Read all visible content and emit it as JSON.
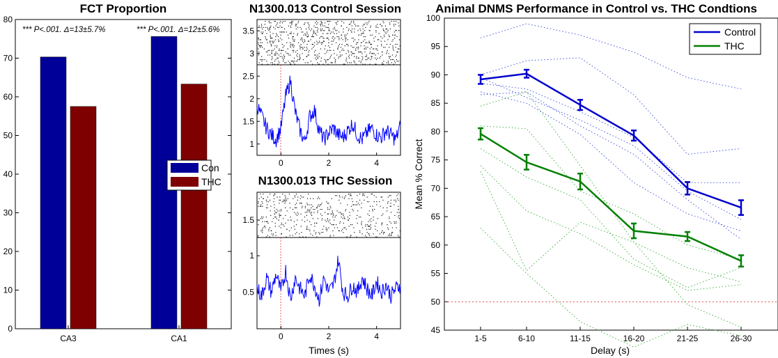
{
  "chart_data": [
    {
      "type": "bar",
      "title": "FCT Proportion",
      "categories": [
        "CA3",
        "CA1"
      ],
      "series": [
        {
          "name": "Con",
          "color": "#000099",
          "values": [
            70.3,
            75.6
          ]
        },
        {
          "name": "THC",
          "color": "#7f0000",
          "values": [
            57.5,
            63.3
          ]
        }
      ],
      "ylim": [
        0,
        80
      ],
      "yticks": [
        "0",
        "10",
        "20",
        "30",
        "40",
        "50",
        "60",
        "70",
        "80"
      ],
      "annotations": [
        "*** P<.001. Δ=13±5.7%",
        "*** P<.001. Δ=12±5.6%"
      ],
      "legend": [
        "Con",
        "THC"
      ],
      "legend_position": "middle-right"
    },
    {
      "type": "line",
      "title": "N1300.013 Control Session",
      "xlim": [
        -1,
        5
      ],
      "xticks": [
        "0",
        "2",
        "4"
      ],
      "raster_ylim": [
        2.75,
        3.75
      ],
      "raster_yticks": [
        "3",
        "3.5"
      ],
      "trace_ylim": [
        0.75,
        2.75
      ],
      "trace_yticks": [
        "1",
        "1.5",
        "2",
        "2.5"
      ],
      "trace_color": "#0000ff",
      "x": [
        -1.0,
        -0.8,
        -0.6,
        -0.4,
        -0.2,
        0.0,
        0.2,
        0.4,
        0.6,
        0.8,
        1.0,
        1.2,
        1.4,
        1.6,
        1.8,
        2.0,
        2.2,
        2.4,
        2.6,
        2.8,
        3.0,
        3.2,
        3.4,
        3.6,
        3.8,
        4.0,
        4.2,
        4.4,
        4.6,
        4.8,
        5.0
      ],
      "values": [
        1.85,
        1.6,
        1.35,
        1.2,
        1.1,
        1.35,
        2.05,
        2.4,
        1.7,
        1.3,
        1.05,
        1.6,
        1.75,
        1.3,
        1.1,
        1.25,
        1.35,
        1.2,
        1.15,
        1.3,
        1.45,
        1.2,
        1.1,
        1.25,
        1.35,
        1.2,
        1.15,
        1.3,
        1.2,
        1.1,
        1.4
      ]
    },
    {
      "type": "line",
      "title": "N1300.013 THC Session",
      "xlim": [
        -1,
        5
      ],
      "xticks": [
        "0",
        "2",
        "4"
      ],
      "xlabel": "Times (s)",
      "raster_ylim": [
        1.25,
        1.9
      ],
      "raster_yticks": [
        "1.5"
      ],
      "trace_ylim": [
        0,
        1.25
      ],
      "trace_yticks": [
        "0.5",
        "1"
      ],
      "trace_color": "#0000ff",
      "x": [
        -1.0,
        -0.8,
        -0.6,
        -0.4,
        -0.2,
        0.0,
        0.2,
        0.4,
        0.6,
        0.8,
        1.0,
        1.2,
        1.4,
        1.6,
        1.8,
        2.0,
        2.2,
        2.4,
        2.6,
        2.8,
        3.0,
        3.2,
        3.4,
        3.6,
        3.8,
        4.0,
        4.2,
        4.4,
        4.6,
        4.8,
        5.0
      ],
      "values": [
        0.55,
        0.45,
        0.7,
        0.5,
        0.75,
        0.5,
        0.8,
        0.4,
        0.7,
        0.55,
        0.45,
        0.75,
        0.6,
        0.4,
        0.7,
        0.5,
        0.6,
        0.95,
        0.5,
        0.45,
        0.6,
        0.5,
        0.7,
        0.55,
        0.45,
        0.65,
        0.5,
        0.6,
        0.45,
        0.55,
        0.6
      ]
    },
    {
      "type": "line",
      "title": "Animal DNMS Performance in Control vs. THC Condtions",
      "categories": [
        "1-5",
        "6-10",
        "11-15",
        "16-20",
        "21-25",
        "26-30"
      ],
      "xlabel": "Delay (s)",
      "ylabel": "Mean % Correct",
      "ylim": [
        45,
        100
      ],
      "yticks": [
        "45",
        "50",
        "55",
        "60",
        "65",
        "70",
        "75",
        "80",
        "85",
        "90",
        "95",
        "100"
      ],
      "reference_line": 50,
      "series": [
        {
          "name": "Control",
          "color": "#0000cc",
          "values": [
            89.2,
            90.2,
            84.7,
            79.3,
            70.0,
            66.6
          ],
          "errors": [
            0.8,
            0.7,
            0.9,
            0.9,
            1.1,
            1.3
          ]
        },
        {
          "name": "THC",
          "color": "#008000",
          "values": [
            79.6,
            74.6,
            71.2,
            62.5,
            61.5,
            57.2
          ],
          "errors": [
            1.0,
            1.3,
            1.4,
            1.3,
            0.8,
            1.0
          ]
        }
      ],
      "individual_control": [
        [
          96.5,
          99.0,
          97.0,
          94.0,
          89.5,
          87.5
        ],
        [
          90.0,
          92.5,
          93.0,
          86.5,
          76.0,
          77.0
        ],
        [
          89.5,
          86.0,
          82.0,
          77.5,
          69.5,
          64.5
        ],
        [
          88.5,
          87.5,
          83.5,
          79.0,
          71.0,
          71.0
        ],
        [
          87.0,
          85.0,
          79.5,
          71.0,
          65.5,
          62.5
        ],
        [
          86.5,
          87.0,
          81.0,
          76.0,
          68.0,
          61.0
        ]
      ],
      "individual_thc": [
        [
          84.5,
          87.0,
          74.0,
          60.5,
          56.0,
          53.5
        ],
        [
          81.0,
          80.5,
          69.5,
          65.5,
          60.0,
          57.5
        ],
        [
          77.0,
          72.0,
          68.0,
          57.5,
          52.5,
          56.0
        ],
        [
          74.0,
          66.0,
          62.0,
          56.5,
          52.0,
          53.0
        ],
        [
          73.0,
          55.5,
          64.0,
          60.5,
          49.5,
          45.5
        ],
        [
          63.0,
          55.0,
          46.5,
          41.0,
          46.0,
          44.0
        ]
      ],
      "legend": [
        "Control",
        "THC"
      ],
      "legend_position": "top-right"
    }
  ]
}
